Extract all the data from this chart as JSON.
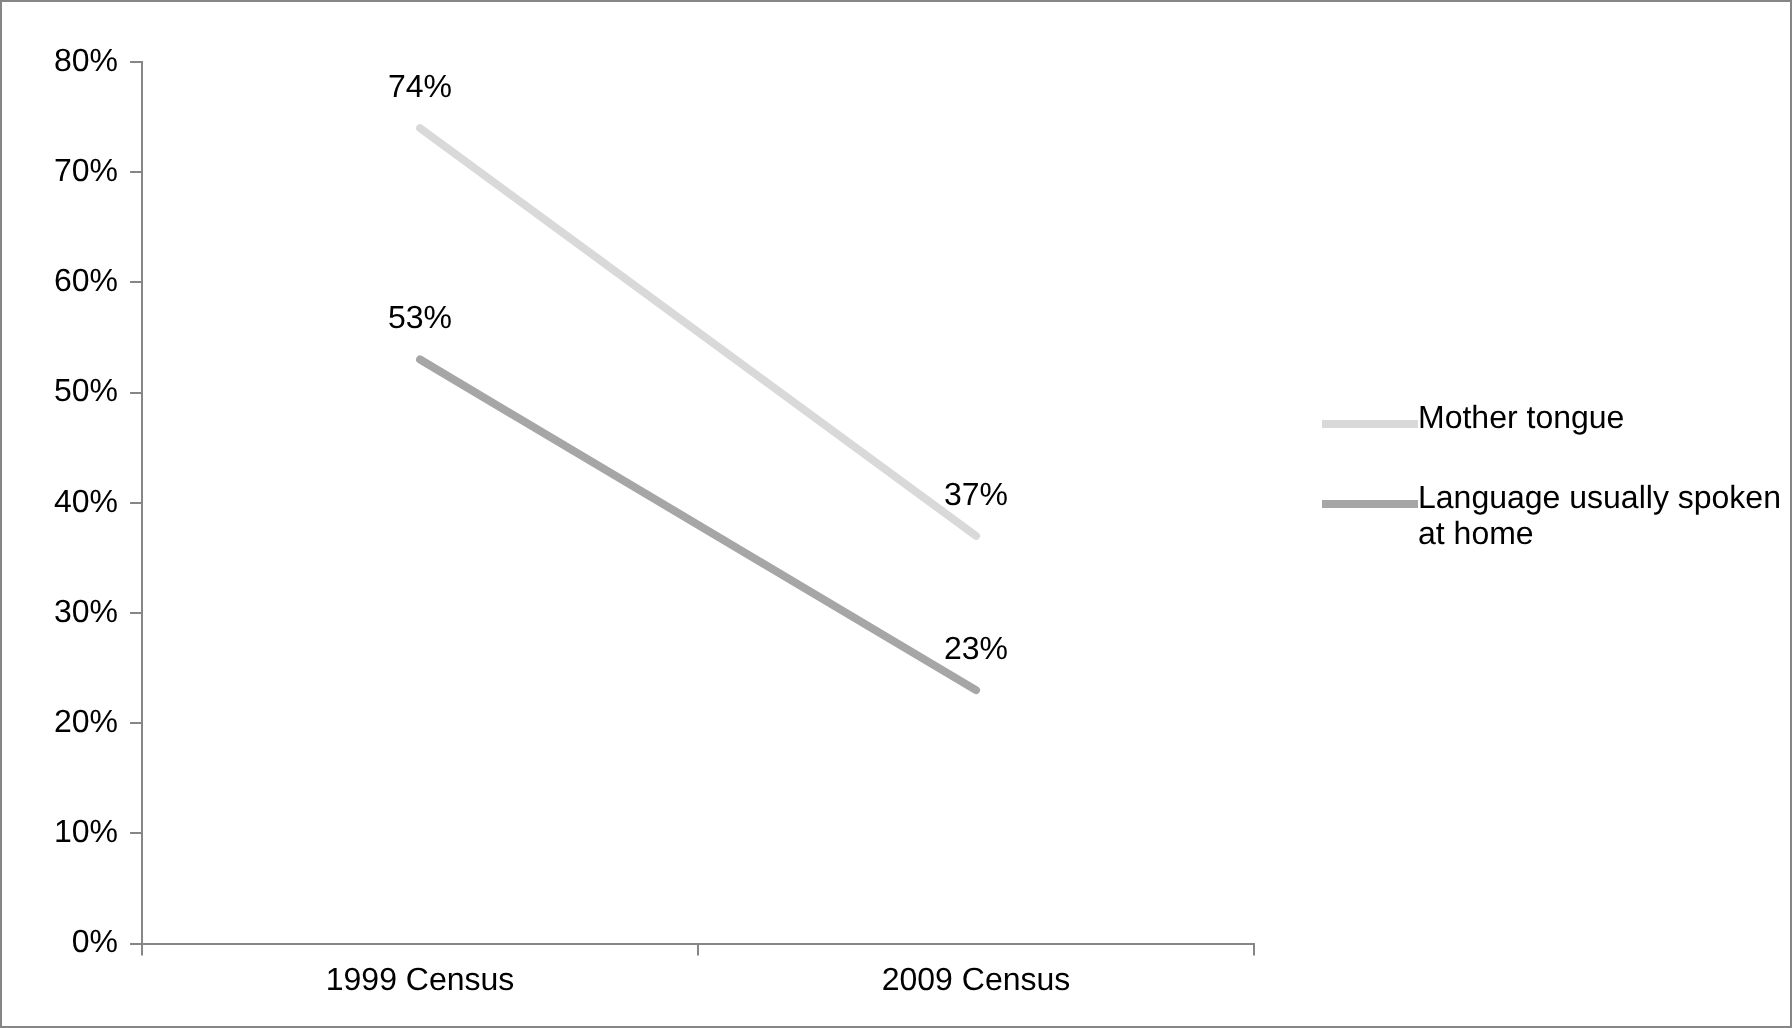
{
  "chart_data": {
    "type": "line",
    "categories": [
      "1999 Census",
      "2009 Census"
    ],
    "series": [
      {
        "name": "Mother tongue",
        "color": "#d9d9d9",
        "values": [
          74,
          37
        ],
        "value_labels": [
          "74%",
          "37%"
        ]
      },
      {
        "name": "Language usually spoken at home",
        "color": "#a6a6a6",
        "values": [
          53,
          23
        ],
        "value_labels": [
          "53%",
          "23%"
        ]
      }
    ],
    "ylim": [
      0,
      80
    ],
    "yticks": [
      {
        "value": 0,
        "label": "0%"
      },
      {
        "value": 10,
        "label": "10%"
      },
      {
        "value": 20,
        "label": "20%"
      },
      {
        "value": 30,
        "label": "30%"
      },
      {
        "value": 40,
        "label": "40%"
      },
      {
        "value": 50,
        "label": "50%"
      },
      {
        "value": 60,
        "label": "60%"
      },
      {
        "value": 70,
        "label": "70%"
      },
      {
        "value": 80,
        "label": "80%"
      }
    ],
    "grid": false,
    "legend": "right",
    "marker": "none",
    "line_style": "solid"
  }
}
